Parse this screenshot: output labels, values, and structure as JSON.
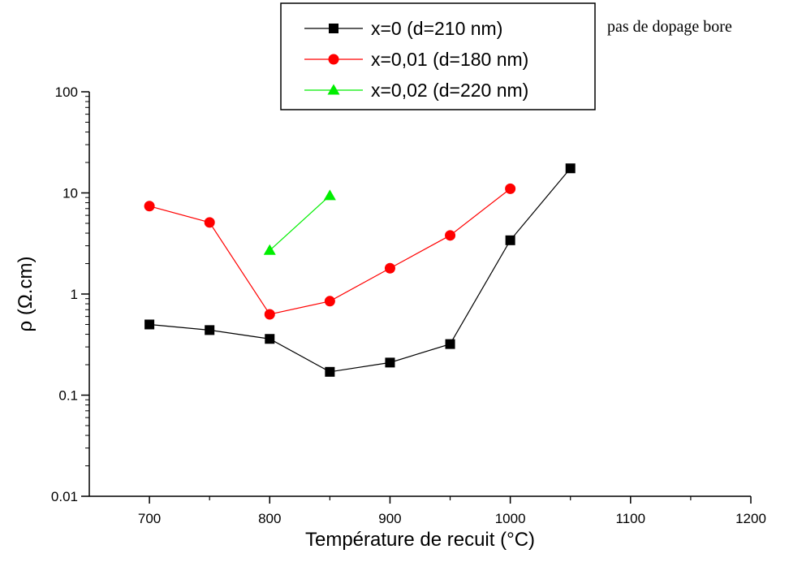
{
  "chart_data": {
    "type": "line",
    "title": "",
    "xlabel": "Température de recuit (°C)",
    "ylabel": "ρ (Ω.cm)",
    "xlim": [
      650,
      1200
    ],
    "ylim": [
      0.01,
      100
    ],
    "yscale": "log",
    "x_ticks": [
      700,
      800,
      900,
      1000,
      1100,
      1200
    ],
    "x_tick_labels": [
      "700",
      "800",
      "900",
      "1000",
      "1100",
      "1200"
    ],
    "y_ticks": [
      0.01,
      0.1,
      1,
      10,
      100
    ],
    "y_tick_labels": [
      "0.01",
      "0.1",
      "1",
      "10",
      "100"
    ],
    "grid": false,
    "legend_position": "top-right",
    "annotation": "pas de dopage bore",
    "series": [
      {
        "name": "x=0 (d=210 nm)",
        "color": "#000000",
        "marker": "square",
        "x": [
          700,
          750,
          800,
          850,
          900,
          950,
          1000,
          1050
        ],
        "y": [
          0.5,
          0.44,
          0.36,
          0.17,
          0.21,
          0.32,
          3.4,
          17.5
        ]
      },
      {
        "name": "x=0,01 (d=180 nm)",
        "color": "#ff0000",
        "marker": "circle",
        "x": [
          700,
          750,
          800,
          850,
          900,
          950,
          1000
        ],
        "y": [
          7.4,
          5.1,
          0.63,
          0.85,
          1.8,
          3.8,
          11.0
        ]
      },
      {
        "name": "x=0,02 (d=220 nm)",
        "color": "#00ee00",
        "marker": "triangle",
        "x": [
          800,
          850
        ],
        "y": [
          2.7,
          9.4
        ]
      }
    ]
  }
}
